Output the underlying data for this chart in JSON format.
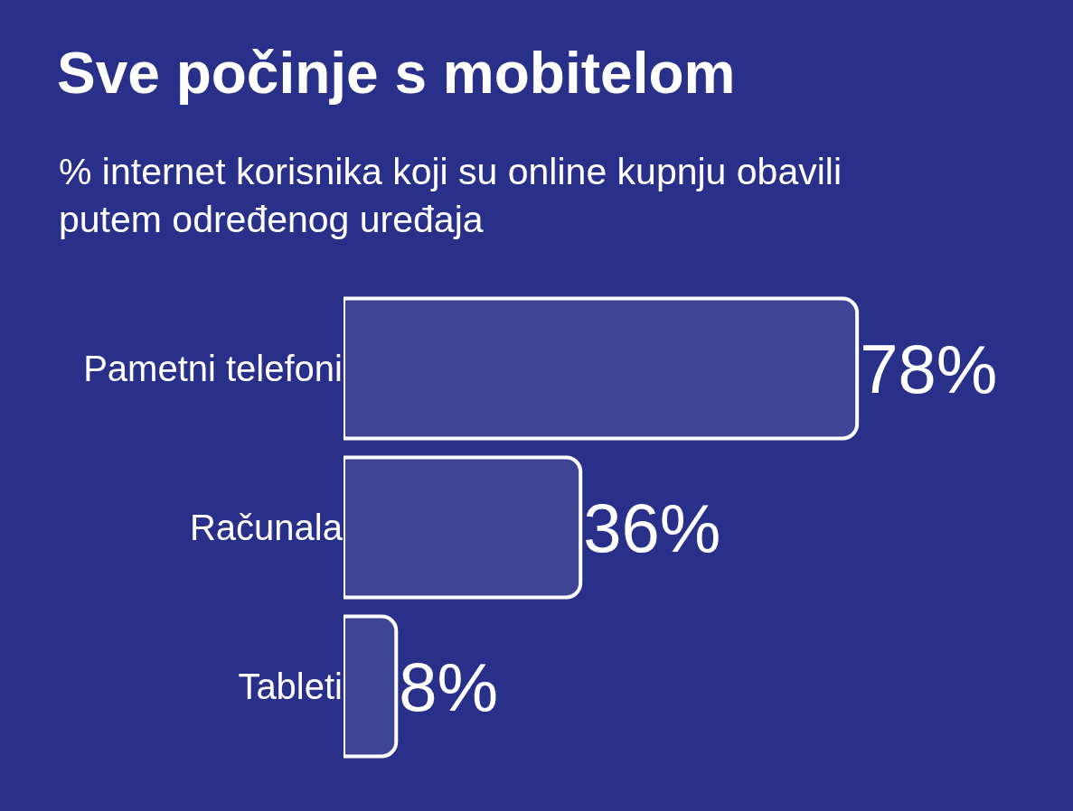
{
  "chart_data": {
    "type": "bar",
    "orientation": "horizontal",
    "title": "Sve počinje s mobitelom",
    "subtitle": "% internet korisnika koji su online kupnju obavili putem određenog uređaja",
    "categories": [
      "Pametni telefoni",
      "Računala",
      "Tableti"
    ],
    "values": [
      78,
      36,
      8
    ],
    "value_labels": [
      "78%",
      "36%",
      "8%"
    ],
    "color": "#ffffff",
    "tick_labels": "y"
  }
}
